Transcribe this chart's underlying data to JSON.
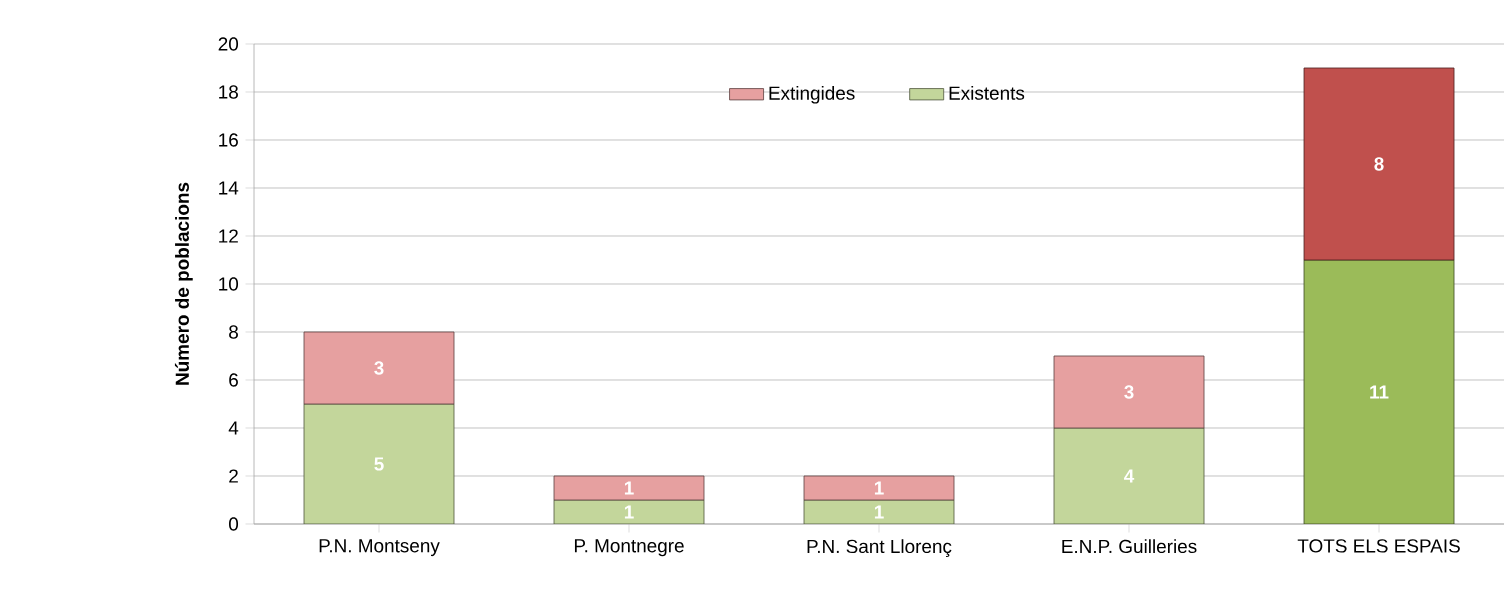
{
  "chart_data": {
    "type": "bar",
    "stacked": true,
    "ylabel": "Número de poblacions",
    "categories": [
      "P.N. Montseny",
      "P. Montnegre",
      "P.N. Sant Llorenç",
      "E.N.P. Guilleries",
      "TOTS ELS ESPAIS"
    ],
    "series": [
      {
        "name": "Existents",
        "color": "#c3d69b",
        "colors": [
          "#c3d69b",
          "#c3d69b",
          "#c3d69b",
          "#c3d69b",
          "#9bbb59"
        ],
        "values": [
          5,
          1,
          1,
          4,
          11
        ]
      },
      {
        "name": "Extingides",
        "color": "#e6a0a0",
        "colors": [
          "#e6a0a0",
          "#e6a0a0",
          "#e6a0a0",
          "#e6a0a0",
          "#c0504d"
        ],
        "values": [
          3,
          1,
          1,
          3,
          8
        ]
      }
    ],
    "ylim": [
      0,
      20
    ],
    "yticks": [
      0,
      2,
      4,
      6,
      8,
      10,
      12,
      14,
      16,
      18,
      20
    ],
    "grid": "y",
    "legend": "top",
    "data_labels": true
  }
}
